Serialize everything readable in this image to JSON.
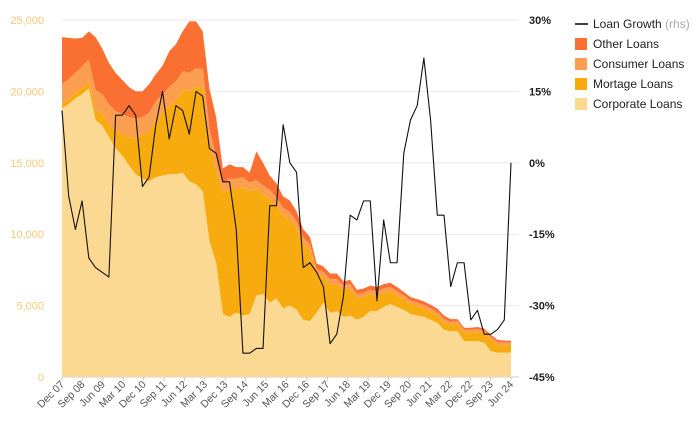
{
  "chart_data": {
    "type": "area",
    "stacked": true,
    "title": "",
    "x_tick_labels": [
      "Dec 07",
      "Sep 08",
      "Jun 09",
      "Mar 10",
      "Dec 10",
      "Sep 11",
      "Jun 12",
      "Mar 13",
      "Dec 13",
      "Sep 14",
      "Jun 15",
      "Mar 16",
      "Dec 16",
      "Sep 17",
      "Jun 18",
      "Mar 19",
      "Dec 19",
      "Sep 20",
      "Jun 21",
      "Mar 22",
      "Dec 22",
      "Sep 23",
      "Jun 24"
    ],
    "left_axis": {
      "ylim": [
        0,
        25000
      ],
      "ticks": [
        0,
        5000,
        10000,
        15000,
        20000,
        25000
      ],
      "tick_labels": [
        "0",
        "5,000",
        "10,000",
        "15,000",
        "20,000",
        "25,000"
      ],
      "color": "#f5c877"
    },
    "right_axis": {
      "ylim": [
        -45,
        30
      ],
      "ticks": [
        -45,
        -30,
        -15,
        0,
        15,
        30
      ],
      "tick_labels": [
        "-45%",
        "-30%",
        "-15%",
        "0%",
        "15%",
        "30%"
      ]
    },
    "x_count": 68,
    "series": [
      {
        "name": "Corporate Loans",
        "color": "#fcd993",
        "values": [
          18800,
          19100,
          19500,
          19800,
          20200,
          18000,
          17600,
          16800,
          16000,
          15500,
          14800,
          14200,
          13900,
          13700,
          14000,
          14100,
          14200,
          14200,
          14300,
          13700,
          13500,
          13000,
          9500,
          8000,
          4400,
          4200,
          4500,
          4300,
          4400,
          5700,
          5800,
          5200,
          5500,
          4800,
          5000,
          4700,
          4000,
          3900,
          4500,
          5200,
          4500,
          4600,
          4200,
          4300,
          4000,
          4200,
          4600,
          4600,
          4900,
          5100,
          4900,
          4700,
          4400,
          4300,
          4200,
          4000,
          3800,
          3300,
          3200,
          3200,
          2500,
          2500,
          2500,
          2400,
          1800,
          1700,
          1700,
          1700
        ]
      },
      {
        "name": "Mortage Loans",
        "color": "#f8ab0f",
        "values": [
          300,
          350,
          400,
          450,
          500,
          700,
          800,
          900,
          1200,
          1500,
          2000,
          2500,
          3000,
          3500,
          4000,
          4400,
          4800,
          5200,
          5800,
          6300,
          6800,
          7300,
          6800,
          6500,
          8500,
          9000,
          8700,
          9000,
          8600,
          7500,
          7000,
          7300,
          6500,
          6500,
          6000,
          5700,
          5300,
          5000,
          2700,
          1800,
          2000,
          1900,
          1900,
          1900,
          1500,
          1400,
          1200,
          1100,
          1000,
          900,
          800,
          700,
          700,
          650,
          600,
          550,
          500,
          500,
          450,
          500,
          600,
          600,
          650,
          650,
          800,
          550,
          500,
          500
        ]
      },
      {
        "name": "Consumer Loans",
        "color": "#fb9e50",
        "values": [
          1400,
          1400,
          1400,
          1500,
          1500,
          1400,
          1400,
          1400,
          1400,
          1400,
          1400,
          1400,
          1300,
          1300,
          1300,
          1300,
          1300,
          1300,
          1300,
          1300,
          1300,
          1300,
          1100,
          900,
          700,
          700,
          700,
          700,
          600,
          600,
          600,
          600,
          550,
          550,
          550,
          500,
          450,
          400,
          350,
          350,
          350,
          350,
          300,
          300,
          300,
          300,
          300,
          300,
          300,
          300,
          300,
          300,
          250,
          250,
          250,
          250,
          250,
          250,
          200,
          200,
          200,
          200,
          200,
          200,
          200,
          200,
          200,
          200
        ]
      },
      {
        "name": "Other Loans",
        "color": "#f97032",
        "values": [
          3300,
          2900,
          2400,
          2000,
          2000,
          3700,
          3200,
          2900,
          2700,
          2400,
          2100,
          1900,
          1800,
          2000,
          1900,
          2000,
          2500,
          2600,
          2800,
          3600,
          3300,
          2600,
          2800,
          2800,
          1000,
          1000,
          800,
          700,
          700,
          2000,
          1600,
          1000,
          1000,
          800,
          800,
          700,
          600,
          500,
          400,
          400,
          400,
          400,
          300,
          300,
          300,
          300,
          300,
          300,
          300,
          300,
          300,
          250,
          250,
          250,
          250,
          250,
          250,
          250,
          200,
          150,
          150,
          150,
          150,
          150,
          150,
          150,
          150,
          150
        ]
      },
      {
        "name": "Loan Growth",
        "color": "#111111",
        "axis": "right",
        "type": "line",
        "values": [
          11,
          -7,
          -14,
          -8,
          -20,
          -22,
          -23,
          -24,
          10,
          10,
          12,
          10,
          -5,
          -3,
          8,
          15,
          5,
          12,
          11,
          6,
          15,
          14,
          3,
          2,
          -4,
          -4,
          -14,
          -40,
          -40,
          -39,
          -39,
          -9,
          -9,
          8,
          0,
          -2,
          -22,
          -21,
          -23,
          -26,
          -38,
          -36,
          -28,
          -11,
          -12,
          -8,
          -8,
          -29,
          -12,
          -21,
          -21,
          2,
          9,
          12,
          22,
          9,
          -11,
          -11,
          -26,
          -21,
          -21,
          -33,
          -31,
          -36,
          -36,
          -35,
          -33,
          0
        ]
      }
    ],
    "legend": {
      "position": "top-right",
      "entries": [
        {
          "label": "Loan Growth",
          "suffix": "(rhs)",
          "color": "#111111",
          "kind": "line"
        },
        {
          "label": "Other Loans",
          "color": "#f97032",
          "kind": "box"
        },
        {
          "label": "Consumer Loans",
          "color": "#fb9e50",
          "kind": "box"
        },
        {
          "label": "Mortage Loans",
          "color": "#f8ab0f",
          "kind": "box"
        },
        {
          "label": "Corporate Loans",
          "color": "#fcd993",
          "kind": "box"
        }
      ]
    },
    "grid": true,
    "gridline_color": "#e8e8e8"
  }
}
